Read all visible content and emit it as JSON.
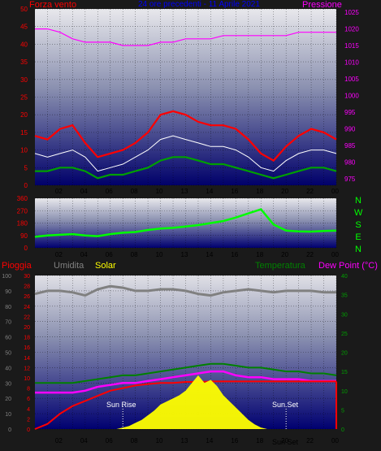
{
  "header": {
    "forza_vento_label": "Forza vento",
    "pressione_label": "Pressione",
    "period_label": "24 ore precedenti - 11 Aprile 2021"
  },
  "bottom_header": {
    "pioggia_label": "Pioggia",
    "umidita_label": "Umidita",
    "solar_label": "Solar",
    "temperatura_label": "Temperatura",
    "dewpoint_label": "Dew Point (°C)"
  },
  "compass": [
    "N",
    "W",
    "S",
    "E",
    "N"
  ],
  "annotations": {
    "sun_rise": "Sun Rise",
    "sun_set": "Sun Set",
    "sun_set_overlap": "Sun Set"
  },
  "colors": {
    "wind_gust": "#ff0000",
    "wind_avg": "#ffffff",
    "wind_green": "#00a000",
    "pressure": "#ff00ff",
    "direction": "#00ff00",
    "humidity": "#808080",
    "temperature": "#008000",
    "dewpoint": "#ff00ff",
    "rain": "#ff0000",
    "solar": "#ffff00",
    "left_axis": "#ff0000",
    "right_axis_green": "#00a000"
  },
  "chart_data": [
    {
      "type": "line",
      "name": "wind_pressure",
      "title": "24 ore precedenti - 11 Aprile 2021",
      "ylabel_left": "Forza vento",
      "ylabel_right": "Pressione",
      "x_tick_labels": [
        "02",
        "04",
        "06",
        "08",
        "10",
        "13",
        "14",
        "16",
        "18",
        "20",
        "22",
        "00"
      ],
      "y_left_ticks": [
        0,
        5,
        10,
        15,
        20,
        25,
        30,
        35,
        40,
        45,
        50
      ],
      "y_right_ticks": [
        975,
        980,
        985,
        990,
        995,
        1000,
        1005,
        1010,
        1015,
        1020,
        1025
      ],
      "ylim_left": [
        0,
        50
      ],
      "ylim_right": [
        973,
        1026
      ],
      "grid": true,
      "series": [
        {
          "name": "gust",
          "axis": "left",
          "x": [
            0,
            1,
            2,
            3,
            4,
            5,
            6,
            7,
            8,
            9,
            10,
            11,
            12,
            13,
            14,
            15,
            16,
            17,
            18,
            19,
            20,
            21,
            22,
            23,
            24
          ],
          "values": [
            14,
            13,
            16,
            17,
            12,
            8,
            9,
            10,
            12,
            15,
            20,
            21,
            20,
            18,
            17,
            17,
            16,
            13,
            9,
            7,
            11,
            14,
            16,
            15,
            13
          ]
        },
        {
          "name": "avg",
          "axis": "left",
          "x": [
            0,
            1,
            2,
            3,
            4,
            5,
            6,
            7,
            8,
            9,
            10,
            11,
            12,
            13,
            14,
            15,
            16,
            17,
            18,
            19,
            20,
            21,
            22,
            23,
            24
          ],
          "values": [
            9,
            8,
            9,
            10,
            8,
            4,
            5,
            6,
            8,
            10,
            13,
            14,
            13,
            12,
            11,
            11,
            10,
            8,
            5,
            4,
            7,
            9,
            10,
            10,
            9
          ]
        },
        {
          "name": "low",
          "axis": "left",
          "x": [
            0,
            1,
            2,
            3,
            4,
            5,
            6,
            7,
            8,
            9,
            10,
            11,
            12,
            13,
            14,
            15,
            16,
            17,
            18,
            19,
            20,
            21,
            22,
            23,
            24
          ],
          "values": [
            4,
            4,
            5,
            5,
            4,
            2,
            3,
            3,
            4,
            5,
            7,
            8,
            8,
            7,
            6,
            6,
            5,
            4,
            3,
            2,
            3,
            4,
            5,
            5,
            4
          ]
        },
        {
          "name": "pressure",
          "axis": "right",
          "x": [
            0,
            1,
            2,
            3,
            4,
            5,
            6,
            7,
            8,
            9,
            10,
            11,
            12,
            13,
            14,
            15,
            16,
            17,
            18,
            19,
            20,
            21,
            22,
            23,
            24
          ],
          "values": [
            1020,
            1020,
            1019,
            1017,
            1016,
            1016,
            1016,
            1015,
            1015,
            1015,
            1016,
            1016,
            1017,
            1017,
            1017,
            1018,
            1018,
            1018,
            1018,
            1018,
            1018,
            1019,
            1019,
            1019,
            1019
          ]
        }
      ]
    },
    {
      "type": "line",
      "name": "direction",
      "y_ticks": [
        0,
        90,
        180,
        270,
        360
      ],
      "ylim": [
        0,
        360
      ],
      "x_tick_labels": [
        "02",
        "04",
        "06",
        "08",
        "10",
        "13",
        "14",
        "16",
        "18",
        "20",
        "22",
        "00"
      ],
      "series": [
        {
          "name": "direction",
          "x": [
            0,
            1,
            2,
            3,
            4,
            5,
            6,
            7,
            8,
            9,
            10,
            11,
            12,
            13,
            14,
            15,
            16,
            17,
            18,
            19,
            20,
            21,
            22,
            23,
            24
          ],
          "values": [
            80,
            90,
            95,
            100,
            90,
            85,
            100,
            110,
            115,
            130,
            140,
            145,
            155,
            165,
            180,
            195,
            220,
            250,
            280,
            170,
            125,
            120,
            118,
            122,
            125
          ]
        }
      ]
    },
    {
      "type": "line",
      "name": "rain_humidity_temp_solar",
      "x_tick_labels": [
        "02",
        "04",
        "06",
        "08",
        "10",
        "13",
        "14",
        "16",
        "18",
        "20",
        "22",
        "00"
      ],
      "y_left_outer_ticks": [
        0,
        10,
        20,
        30,
        40,
        50,
        60,
        70,
        80,
        90,
        100
      ],
      "y_left_inner_ticks": [
        0,
        2,
        4,
        6,
        8,
        10,
        12,
        14,
        16,
        18,
        20,
        22,
        24,
        26,
        28,
        30
      ],
      "y_right_ticks": [
        0,
        5,
        10,
        15,
        20,
        25,
        30,
        35,
        40
      ],
      "series": [
        {
          "name": "humidity",
          "axis": "outer",
          "x": [
            0,
            1,
            2,
            3,
            4,
            5,
            6,
            7,
            8,
            9,
            10,
            11,
            12,
            13,
            14,
            15,
            16,
            17,
            18,
            19,
            20,
            21,
            22,
            23,
            24
          ],
          "values": [
            88,
            90,
            90,
            89,
            87,
            91,
            93,
            92,
            90,
            90,
            91,
            91,
            90,
            88,
            87,
            89,
            90,
            91,
            90,
            89,
            90,
            90,
            90,
            89,
            89
          ]
        },
        {
          "name": "temperature",
          "axis": "right",
          "x": [
            0,
            1,
            2,
            3,
            4,
            5,
            6,
            7,
            8,
            9,
            10,
            11,
            12,
            13,
            14,
            15,
            16,
            17,
            18,
            19,
            20,
            21,
            22,
            23,
            24
          ],
          "values": [
            12,
            12,
            12,
            12,
            12.5,
            13,
            13.5,
            14,
            14,
            14.5,
            15,
            15.5,
            16,
            16.5,
            17,
            17,
            16.5,
            16,
            16,
            15.5,
            15,
            15,
            14.5,
            14.5,
            14
          ]
        },
        {
          "name": "dewpoint",
          "axis": "right",
          "x": [
            0,
            1,
            2,
            3,
            4,
            5,
            6,
            7,
            8,
            9,
            10,
            11,
            12,
            13,
            14,
            15,
            16,
            17,
            18,
            19,
            20,
            21,
            22,
            23,
            24
          ],
          "values": [
            9.5,
            9.5,
            9.5,
            9.5,
            10,
            11,
            11.5,
            12,
            12,
            12.5,
            13,
            13.5,
            14,
            14.5,
            15,
            15,
            14,
            13.5,
            13.5,
            13,
            13,
            13,
            12.5,
            12.5,
            12.5
          ]
        },
        {
          "name": "rain",
          "axis": "inner",
          "x": [
            0,
            1,
            2,
            3,
            4,
            5,
            6,
            7,
            8,
            9,
            10,
            11,
            12,
            13,
            14,
            15,
            16,
            17,
            18,
            19,
            20,
            21,
            22,
            23,
            24
          ],
          "values": [
            0,
            1,
            3,
            4.5,
            5.5,
            6.5,
            7.5,
            8,
            8.5,
            8.8,
            9,
            9,
            9.2,
            9.2,
            9.3,
            9.3,
            9.3,
            9.3,
            9.3,
            9.3,
            9.3,
            9.3,
            9.3,
            9.3,
            9.3
          ]
        },
        {
          "name": "solar",
          "axis": "outer",
          "x": [
            6.5,
            7,
            7.5,
            8,
            8.5,
            9,
            9.5,
            10,
            10.5,
            11,
            11.5,
            12,
            12.5,
            13,
            13.5,
            14,
            14.5,
            15,
            15.5,
            16,
            16.5,
            17,
            17.5,
            18,
            18.5
          ],
          "values": [
            0,
            1,
            2,
            4,
            6,
            9,
            12,
            16,
            18,
            20,
            22,
            25,
            30,
            35,
            30,
            32,
            28,
            22,
            18,
            14,
            10,
            6,
            3,
            1,
            0
          ]
        }
      ]
    }
  ]
}
